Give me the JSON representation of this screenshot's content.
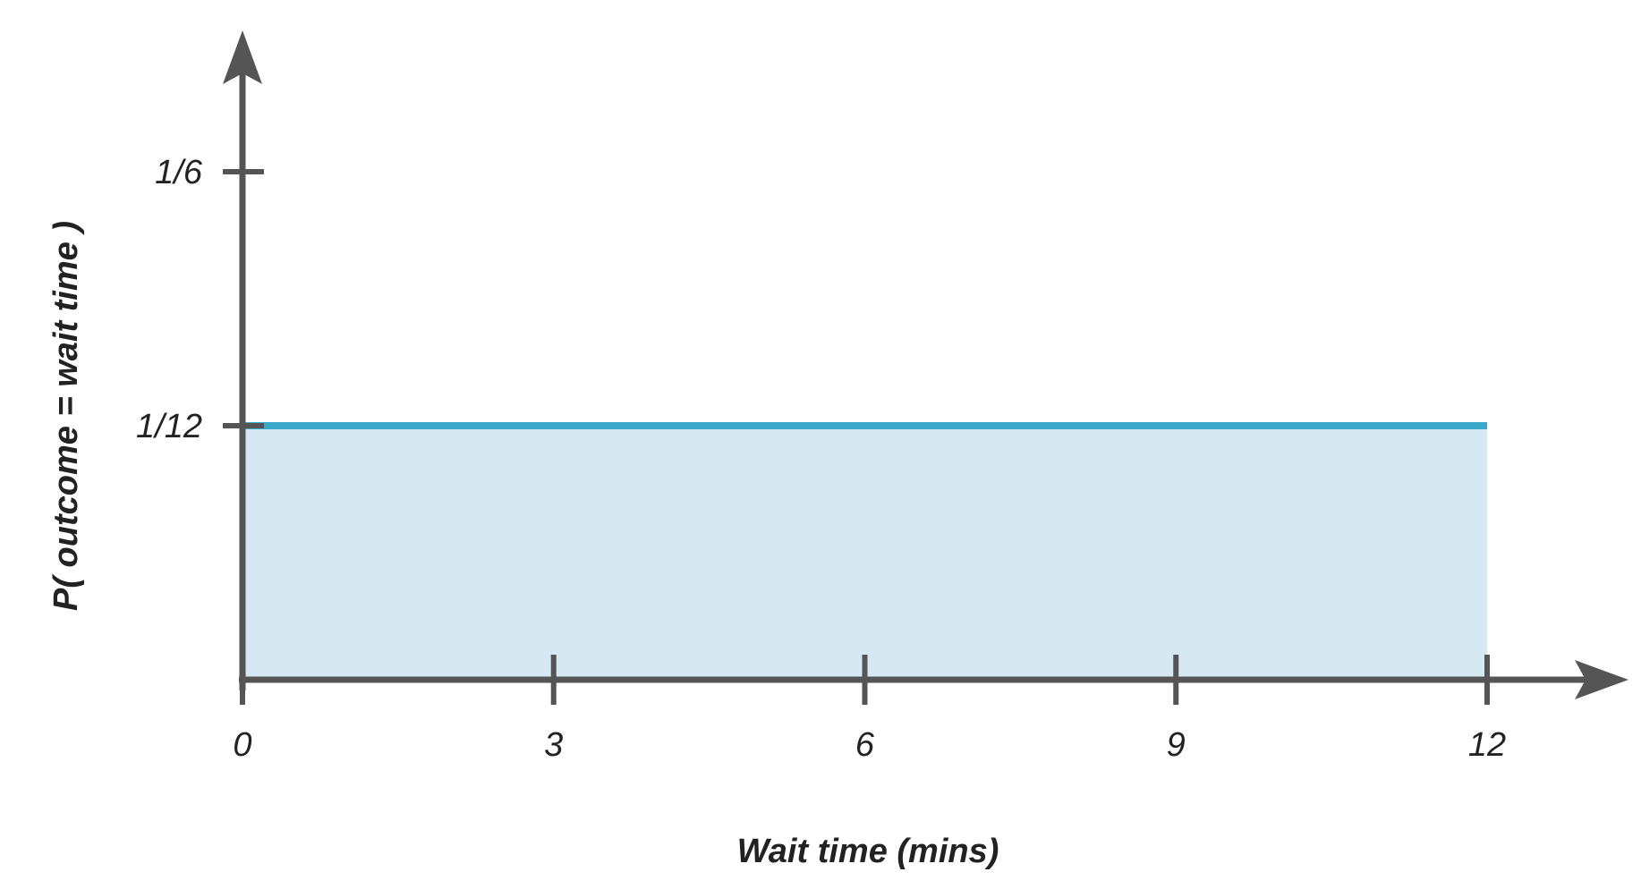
{
  "chart_data": {
    "type": "area",
    "xlabel": "Wait time (mins)",
    "ylabel": "P( outcome  = wait time )",
    "xlim": [
      0,
      12
    ],
    "ylim": [
      0,
      0.2
    ],
    "x_ticks": [
      {
        "value": 0,
        "label": "0"
      },
      {
        "value": 3,
        "label": "3"
      },
      {
        "value": 6,
        "label": "6"
      },
      {
        "value": 9,
        "label": "9"
      },
      {
        "value": 12,
        "label": "12"
      }
    ],
    "y_ticks": [
      {
        "value": 0.0833333,
        "label": "1/12"
      },
      {
        "value": 0.1666667,
        "label": "1/6"
      }
    ],
    "series": [
      {
        "x": [
          0,
          12
        ],
        "y": [
          0.0833333,
          0.0833333
        ]
      }
    ],
    "grid": false,
    "colors": {
      "axis": "#555555",
      "line": "#3aa8c8",
      "fill": "#d6e9f2"
    }
  }
}
